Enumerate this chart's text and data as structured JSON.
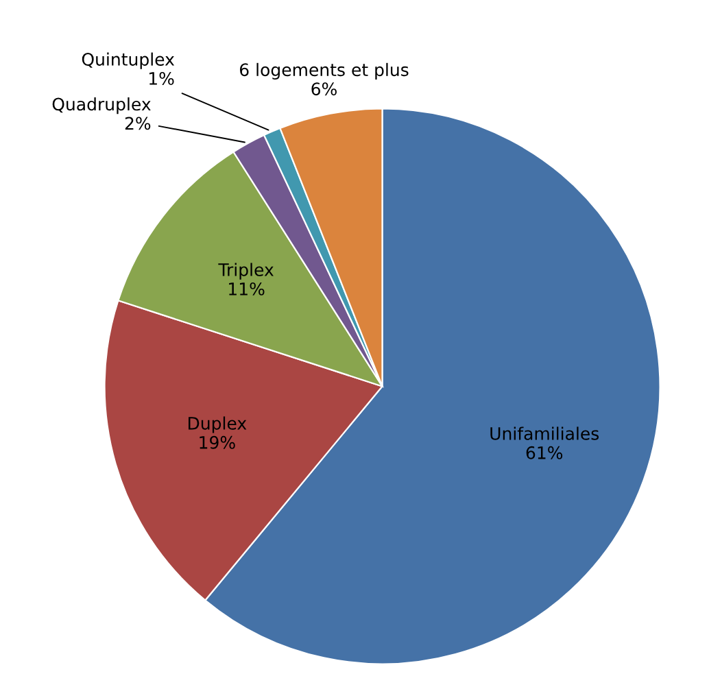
{
  "chart_data": {
    "type": "pie",
    "categories": [
      "Unifamiliales",
      "Duplex",
      "Triplex",
      "Quadruplex",
      "Quintuplex",
      "6 logements et plus"
    ],
    "values": [
      61,
      19,
      11,
      2,
      1,
      6
    ],
    "value_labels": [
      "61%",
      "19%",
      "11%",
      "2%",
      "1%",
      "6%"
    ],
    "colors": [
      "#4572a7",
      "#aa4643",
      "#89a54e",
      "#71588f",
      "#4198af",
      "#db843d"
    ],
    "legend": false
  }
}
